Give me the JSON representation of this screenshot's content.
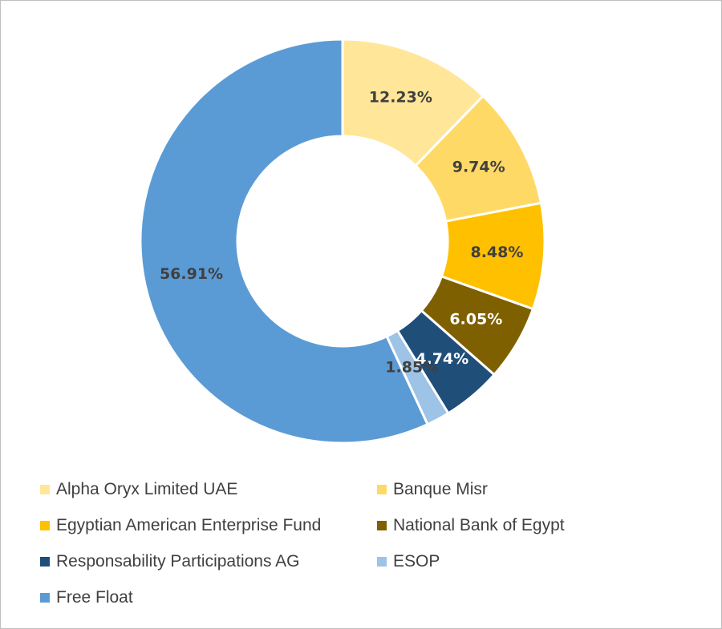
{
  "chart_data": {
    "type": "pie",
    "donut": true,
    "title": "",
    "legend_position": "bottom",
    "slices": [
      {
        "name": "Alpha Oryx Limited UAE",
        "value": 12.23,
        "label": "12.23%",
        "color": "#FFE699",
        "label_color": "#404040"
      },
      {
        "name": "Banque Misr",
        "value": 9.74,
        "label": "9.74%",
        "color": "#FFD966",
        "label_color": "#404040"
      },
      {
        "name": "Egyptian American Enterprise Fund",
        "value": 8.48,
        "label": "8.48%",
        "color": "#FFC000",
        "label_color": "#404040"
      },
      {
        "name": "National Bank of Egypt",
        "value": 6.05,
        "label": "6.05%",
        "color": "#7F6000",
        "label_color": "#FFFFFF"
      },
      {
        "name": "Responsability Participations AG",
        "value": 4.74,
        "label": "4.74%",
        "color": "#1F4E79",
        "label_color": "#FFFFFF"
      },
      {
        "name": "ESOP",
        "value": 1.85,
        "label": "1.85%",
        "color": "#9DC3E6",
        "label_color": "#404040"
      },
      {
        "name": "Free Float",
        "value": 56.91,
        "label": "56.91%",
        "color": "#5B9BD5",
        "label_color": "#404040"
      }
    ]
  }
}
